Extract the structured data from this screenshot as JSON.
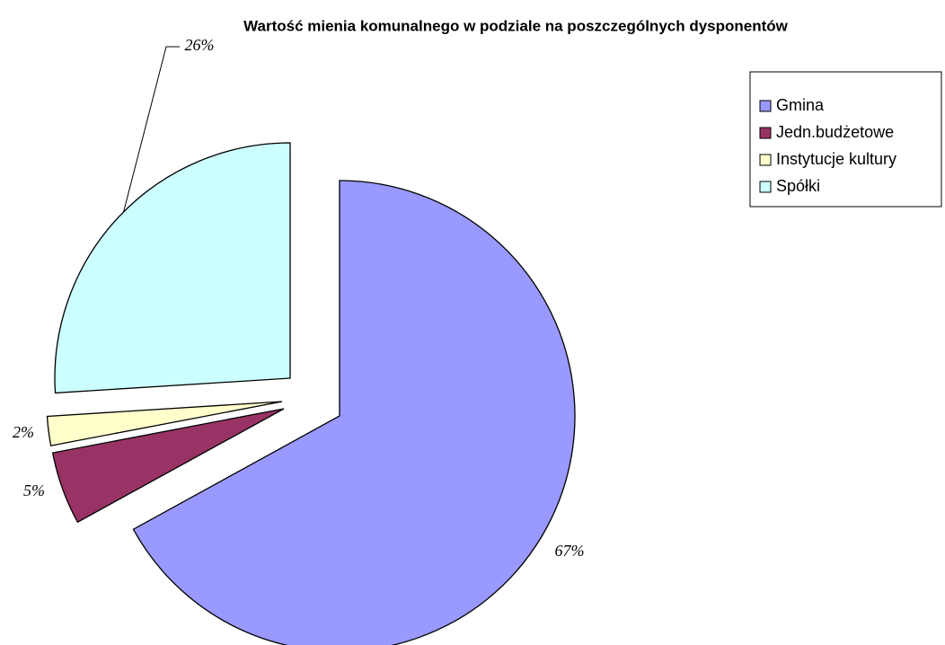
{
  "chart_data": {
    "type": "pie",
    "title": "Wartość mienia komunalnego w podziale na poszczególnych dysponentów",
    "categories": [
      "Gmina",
      "Jedn.budżetowe",
      "Instytucje kultury",
      "Spółki"
    ],
    "values": [
      67,
      5,
      2,
      26
    ],
    "value_labels": [
      "67%",
      "5%",
      "2%",
      "26%"
    ],
    "colors": [
      "#9999ff",
      "#993366",
      "#ffffcc",
      "#ccffff"
    ],
    "legend": "right"
  }
}
